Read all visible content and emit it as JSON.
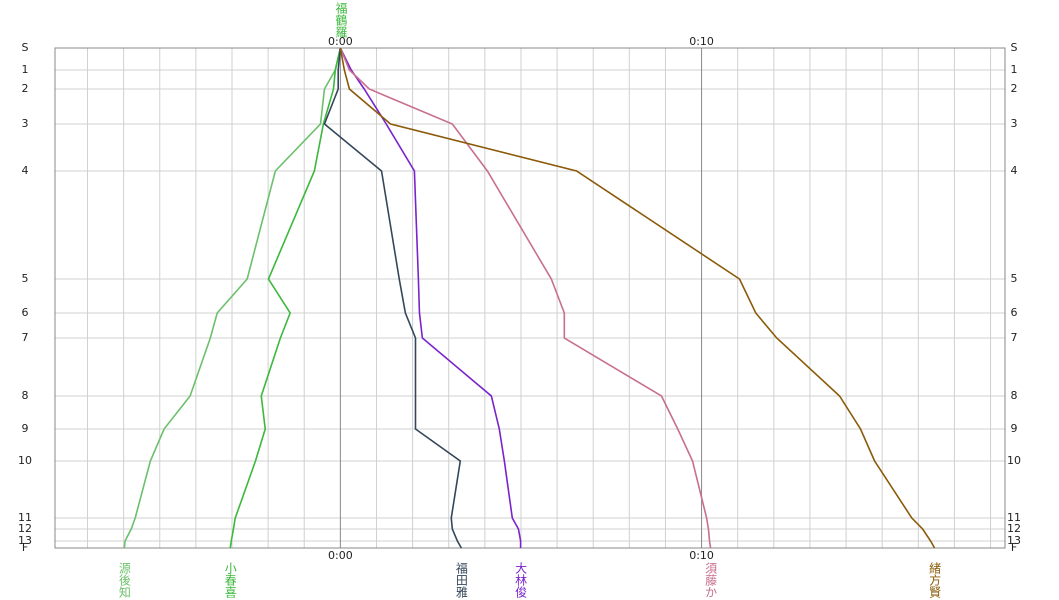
{
  "chart_data": {
    "type": "line",
    "top_label": "福鶴羅",
    "xlim": [
      -7.9,
      18.4
    ],
    "xticks": [
      {
        "value": 0,
        "label": "0:00"
      },
      {
        "value": 10,
        "label": "0:10"
      }
    ],
    "xminor": [
      -7,
      -6,
      -5,
      -4,
      -3,
      -2,
      -1,
      1,
      2,
      3,
      4,
      5,
      6,
      7,
      8,
      9,
      11,
      12,
      13,
      14,
      15,
      16,
      17,
      18
    ],
    "ylim": [
      0,
      500
    ],
    "yticks": [
      {
        "value": 0,
        "label": "S"
      },
      22,
      41,
      76,
      123,
      231,
      265,
      290,
      348,
      381,
      413,
      470,
      481,
      493,
      {
        "value": 500,
        "label": "F"
      }
    ],
    "ytick_labels": [
      "S",
      "1",
      "2",
      "3",
      "4",
      "5",
      "6",
      "7",
      "8",
      "9",
      "10",
      "11",
      "12",
      "13",
      "F"
    ],
    "series": [
      {
        "name": "源後知",
        "color": "#6cc06c",
        "values": [
          0,
          -0.14,
          -0.44,
          -0.55,
          -1.8,
          -2.58,
          -3.41,
          -3.6,
          -4.16,
          -4.88,
          -5.26,
          -5.68,
          -5.79,
          -5.96,
          -5.98
        ]
      },
      {
        "name": "小春喜",
        "color": "#3cb83c",
        "values": [
          0,
          -0.14,
          -0.19,
          -0.47,
          -0.72,
          -1.99,
          -1.39,
          -1.66,
          -2.19,
          -2.08,
          -2.35,
          -2.91,
          -2.96,
          -3.02,
          -3.05
        ]
      },
      {
        "name": "福田雅",
        "color": "#33475a",
        "values": [
          0,
          -0.06,
          -0.06,
          -0.44,
          1.14,
          1.63,
          1.8,
          2.08,
          2.08,
          2.08,
          3.32,
          3.07,
          3.1,
          3.24,
          3.35
        ]
      },
      {
        "name": "大林俊",
        "color": "#7a22cc",
        "values": [
          0,
          0.3,
          0.66,
          1.27,
          2.05,
          2.16,
          2.19,
          2.27,
          4.18,
          4.4,
          4.54,
          4.76,
          4.93,
          4.99,
          4.99
        ]
      },
      {
        "name": "須藤か",
        "color": "#c86f8f",
        "values": [
          0,
          0.25,
          0.8,
          3.1,
          4.07,
          5.84,
          6.2,
          6.2,
          8.89,
          9.34,
          9.75,
          10.14,
          10.19,
          10.22,
          10.25
        ]
      },
      {
        "name": "緒方賢",
        "color": "#8a5a08",
        "values": [
          0,
          0.11,
          0.25,
          1.39,
          6.54,
          11.05,
          11.5,
          12.08,
          13.82,
          14.4,
          14.79,
          15.82,
          16.12,
          16.34,
          16.45
        ]
      }
    ]
  }
}
